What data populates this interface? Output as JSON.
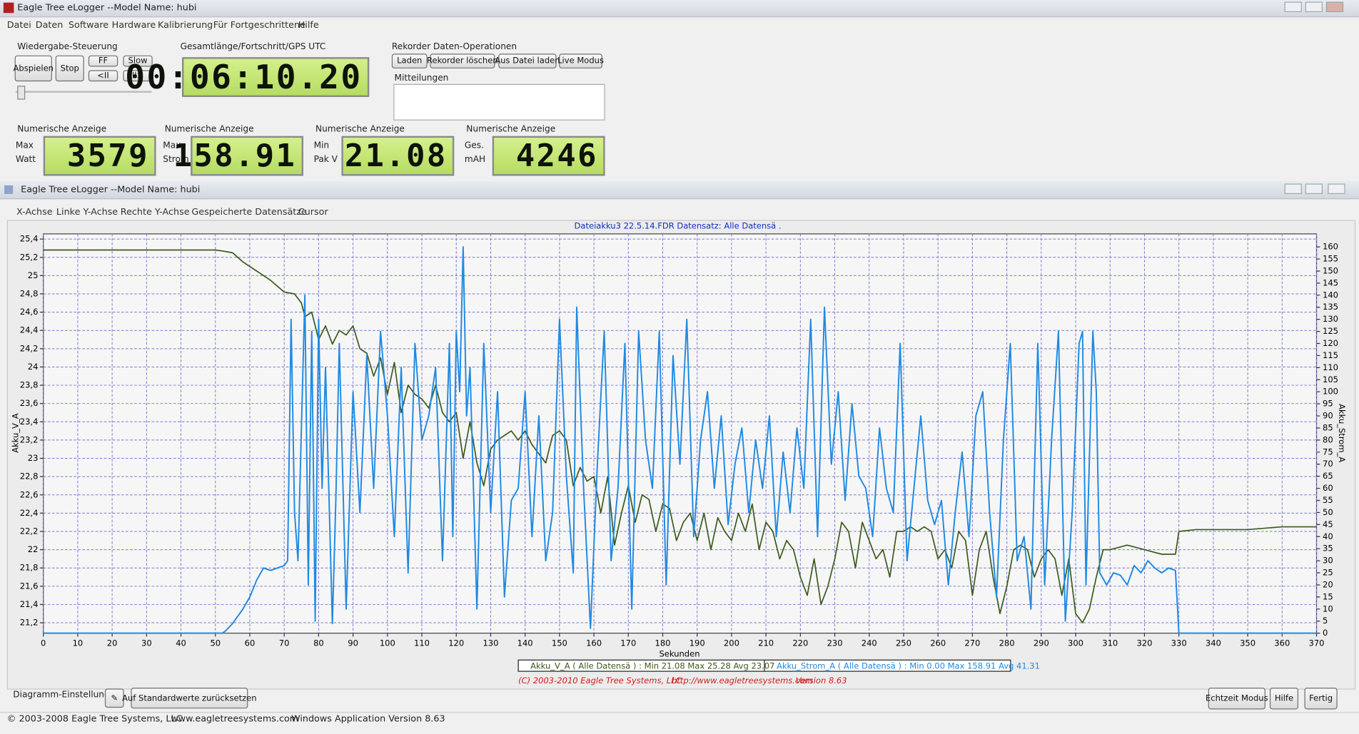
{
  "window": {
    "title": "Eagle Tree eLogger --Model Name: hubi",
    "menu": [
      "Datei",
      "Daten",
      "Software",
      "Hardware",
      "Kalibrierung",
      "Für Fortgeschrittene",
      "Hilfe"
    ]
  },
  "playback": {
    "title": "Wiedergabe-Steuerung",
    "buttons": [
      "Abspielen",
      "Stop",
      "FF",
      "Slow",
      "<II",
      "II>"
    ]
  },
  "timer": {
    "title": "Gesamtlänge/Fortschritt/GPS UTC",
    "value": "00:06:10.20"
  },
  "recorder": {
    "title": "Rekorder Daten-Operationen",
    "buttons": [
      "Laden",
      "Rekorder löschen",
      "Aus Datei laden",
      "Live Modus"
    ]
  },
  "messages": {
    "title": "Mitteilungen"
  },
  "displays": [
    {
      "title": "Numerische Anzeige",
      "labels": [
        "Max",
        "Watt"
      ],
      "value": "3579"
    },
    {
      "title": "Numerische Anzeige",
      "labels": [
        "Max",
        "Strom"
      ],
      "value": "158.91"
    },
    {
      "title": "Numerische Anzeige",
      "labels": [
        "Min",
        "Pak V"
      ],
      "value": "21.08"
    },
    {
      "title": "Numerische Anzeige",
      "labels": [
        "Ges.",
        "mAH"
      ],
      "value": "4246"
    }
  ],
  "graph_window": {
    "title": "Eagle Tree eLogger --Model Name: hubi",
    "menu": [
      "X-Achse",
      "Linke Y-Achse",
      "Rechte Y-Achse",
      "Gespeicherte Datensätze",
      "Cursor"
    ]
  },
  "chart_data": {
    "type": "line",
    "title": "Dateiakku3 22.5.14.FDR  Datensatz: Alle Datensä .",
    "xlabel": "Sekunden",
    "ylabel": "Akku_V_A",
    "y2label": "Akku_Strom_A",
    "xlim": [
      0,
      370
    ],
    "ylim": [
      21.086,
      25.457
    ],
    "y2lim": [
      0,
      165.4
    ],
    "grid": true,
    "xticks": [
      0,
      10,
      20,
      30,
      40,
      50,
      60,
      70,
      80,
      90,
      100,
      110,
      120,
      130,
      140,
      150,
      160,
      170,
      180,
      190,
      200,
      210,
      220,
      230,
      240,
      250,
      260,
      270,
      280,
      290,
      300,
      310,
      320,
      330,
      340,
      350,
      360,
      370
    ],
    "yticks": [
      {
        "value": 21.2,
        "label": "21,2"
      },
      {
        "value": 21.4,
        "label": "21,4"
      },
      {
        "value": 21.6,
        "label": "21,6"
      },
      {
        "value": 21.8,
        "label": "21,8"
      },
      22,
      {
        "value": 22.2,
        "label": "22,2"
      },
      {
        "value": 22.4,
        "label": "22,4"
      },
      {
        "value": 22.6,
        "label": "22,6"
      },
      {
        "value": 22.8,
        "label": "22,8"
      },
      23,
      {
        "value": 23.2,
        "label": "23,2"
      },
      {
        "value": 23.4,
        "label": "23,4"
      },
      {
        "value": 23.6,
        "label": "23,6"
      },
      {
        "value": 23.8,
        "label": "23,8"
      },
      24,
      {
        "value": 24.2,
        "label": "24,2"
      },
      {
        "value": 24.4,
        "label": "24,4"
      },
      {
        "value": 24.6,
        "label": "24,6"
      },
      {
        "value": 24.8,
        "label": "24,8"
      },
      25,
      {
        "value": 25.2,
        "label": "25,2"
      },
      {
        "value": 25.4,
        "label": "25,4"
      }
    ],
    "y2ticks": [
      0,
      5,
      10,
      15,
      20,
      25,
      30,
      35,
      40,
      45,
      50,
      55,
      60,
      65,
      70,
      75,
      80,
      85,
      90,
      95,
      100,
      105,
      110,
      115,
      120,
      125,
      130,
      135,
      140,
      145,
      150,
      155,
      160
    ],
    "series": [
      {
        "name": "Akku_V_A ( Alle Datensä ) : Min 21.08   Max 25.28   Avg 23.07",
        "color": "#3b5a1c",
        "x": [
          0,
          50,
          52,
          55,
          58,
          62,
          66,
          70,
          73,
          75,
          76,
          78,
          80,
          82,
          84,
          86,
          88,
          90,
          92,
          94,
          96,
          98,
          100,
          102,
          104,
          106,
          108,
          110,
          112,
          114,
          116,
          118,
          120,
          122,
          124,
          126,
          128,
          130,
          132,
          134,
          136,
          138,
          140,
          142,
          144,
          146,
          148,
          150,
          152,
          154,
          156,
          158,
          160,
          162,
          164,
          166,
          168,
          170,
          172,
          174,
          176,
          178,
          180,
          182,
          184,
          186,
          188,
          190,
          192,
          194,
          196,
          198,
          200,
          202,
          204,
          206,
          208,
          210,
          212,
          214,
          216,
          218,
          220,
          222,
          224,
          226,
          228,
          230,
          232,
          234,
          236,
          238,
          240,
          242,
          244,
          246,
          248,
          250,
          252,
          254,
          256,
          258,
          260,
          262,
          264,
          266,
          268,
          270,
          272,
          274,
          276,
          278,
          280,
          282,
          284,
          286,
          288,
          290,
          292,
          294,
          296,
          298,
          300,
          302,
          304,
          306,
          308,
          310,
          315,
          320,
          325,
          329,
          330,
          335,
          340,
          350,
          360,
          370
        ],
        "values": [
          25.28,
          25.28,
          25.27,
          25.25,
          25.15,
          25.05,
          24.95,
          24.82,
          24.8,
          24.7,
          24.55,
          24.6,
          24.3,
          24.45,
          24.25,
          24.4,
          24.35,
          24.45,
          24.2,
          24.15,
          23.9,
          24.1,
          23.7,
          24.05,
          23.5,
          23.8,
          23.7,
          23.65,
          23.55,
          23.8,
          23.5,
          23.4,
          23.5,
          23.0,
          23.4,
          22.95,
          22.7,
          23.1,
          23.2,
          23.25,
          23.3,
          23.2,
          23.3,
          23.15,
          23.05,
          22.95,
          23.25,
          23.3,
          23.2,
          22.7,
          22.9,
          22.75,
          22.8,
          22.4,
          22.8,
          22.05,
          22.4,
          22.7,
          22.3,
          22.6,
          22.55,
          22.2,
          22.5,
          22.45,
          22.1,
          22.3,
          22.4,
          22.1,
          22.4,
          22.0,
          22.35,
          22.2,
          22.1,
          22.4,
          22.2,
          22.5,
          22.0,
          22.3,
          22.2,
          21.9,
          22.1,
          22.0,
          21.7,
          21.5,
          21.9,
          21.4,
          21.6,
          21.9,
          22.3,
          22.2,
          21.8,
          22.3,
          22.1,
          21.9,
          22.0,
          21.7,
          22.2,
          22.2,
          22.25,
          22.2,
          22.25,
          22.2,
          21.9,
          22.0,
          21.8,
          22.2,
          22.1,
          21.5,
          22.0,
          22.2,
          21.7,
          21.3,
          21.6,
          22.0,
          22.05,
          22.0,
          21.7,
          21.9,
          22.0,
          21.9,
          21.5,
          21.9,
          21.3,
          21.2,
          21.35,
          21.7,
          22.0,
          22.0,
          22.05,
          22.0,
          21.95,
          21.95,
          22.2,
          22.22,
          22.22,
          22.22,
          22.25,
          22.25
        ]
      },
      {
        "name": "Akku_Strom_A ( Alle Datensä ) : Min 0.00   Max 158.91   Avg 41.31",
        "color": "#1f8ae2",
        "axis": "y2",
        "x": [
          0,
          52,
          53,
          55,
          58,
          60,
          62,
          64,
          66,
          68,
          70,
          71,
          72,
          73,
          74,
          76,
          77,
          78,
          79,
          80,
          81,
          82,
          84,
          85,
          86,
          88,
          90,
          92,
          94,
          96,
          98,
          100,
          102,
          104,
          106,
          108,
          110,
          112,
          114,
          116,
          118,
          119,
          120,
          121,
          122,
          123,
          124,
          126,
          128,
          130,
          132,
          134,
          136,
          138,
          140,
          142,
          144,
          146,
          148,
          150,
          152,
          154,
          155,
          157,
          159,
          161,
          163,
          165,
          167,
          169,
          171,
          173,
          175,
          177,
          179,
          181,
          183,
          185,
          187,
          189,
          191,
          193,
          195,
          197,
          199,
          201,
          203,
          205,
          207,
          209,
          211,
          213,
          215,
          217,
          219,
          221,
          223,
          225,
          227,
          229,
          231,
          233,
          235,
          237,
          239,
          241,
          243,
          245,
          247,
          249,
          251,
          253,
          255,
          257,
          259,
          261,
          263,
          265,
          267,
          269,
          271,
          273,
          275,
          277,
          279,
          281,
          283,
          285,
          287,
          289,
          291,
          293,
          295,
          297,
          299,
          301,
          302,
          303,
          305,
          306,
          307,
          309,
          311,
          313,
          315,
          317,
          319,
          321,
          323,
          325,
          327,
          329,
          330,
          340,
          370
        ],
        "values": [
          0,
          0,
          1,
          4,
          10,
          15,
          22,
          27,
          26,
          27,
          28,
          30,
          130,
          50,
          30,
          140,
          20,
          125,
          5,
          130,
          60,
          110,
          4,
          55,
          120,
          10,
          100,
          50,
          115,
          60,
          125,
          90,
          40,
          110,
          25,
          120,
          80,
          90,
          110,
          30,
          120,
          40,
          125,
          100,
          160,
          90,
          110,
          10,
          120,
          50,
          100,
          15,
          55,
          60,
          100,
          40,
          90,
          30,
          50,
          130,
          65,
          25,
          135,
          60,
          2,
          70,
          125,
          30,
          60,
          120,
          10,
          125,
          80,
          60,
          125,
          20,
          115,
          70,
          130,
          40,
          80,
          100,
          60,
          90,
          45,
          70,
          85,
          50,
          80,
          60,
          90,
          40,
          75,
          50,
          85,
          60,
          130,
          40,
          135,
          70,
          100,
          55,
          95,
          65,
          60,
          40,
          85,
          60,
          50,
          120,
          30,
          60,
          90,
          55,
          45,
          55,
          20,
          50,
          75,
          40,
          90,
          100,
          50,
          15,
          80,
          120,
          30,
          40,
          10,
          120,
          20,
          80,
          125,
          5,
          50,
          120,
          125,
          20,
          125,
          100,
          25,
          20,
          25,
          24,
          20,
          28,
          25,
          30,
          27,
          25,
          27,
          26,
          0,
          0,
          0
        ]
      }
    ],
    "footer_texts": [
      "(C) 2003-2010 Eagle Tree Systems, LLC",
      "http://www.eagletreesystems.com",
      "Version 8.63"
    ]
  },
  "footer": {
    "settings_label": "Diagramm-Einstellungen:",
    "reset": "Auf Standardwerte zurücksetzen",
    "buttons": [
      "Echtzeit Modus",
      "Hilfe",
      "Fertig"
    ]
  },
  "status_bar": [
    "© 2003-2008 Eagle Tree Systems, LLC",
    "www.eagletreesystems.com",
    "Windows Application Version 8.63"
  ]
}
